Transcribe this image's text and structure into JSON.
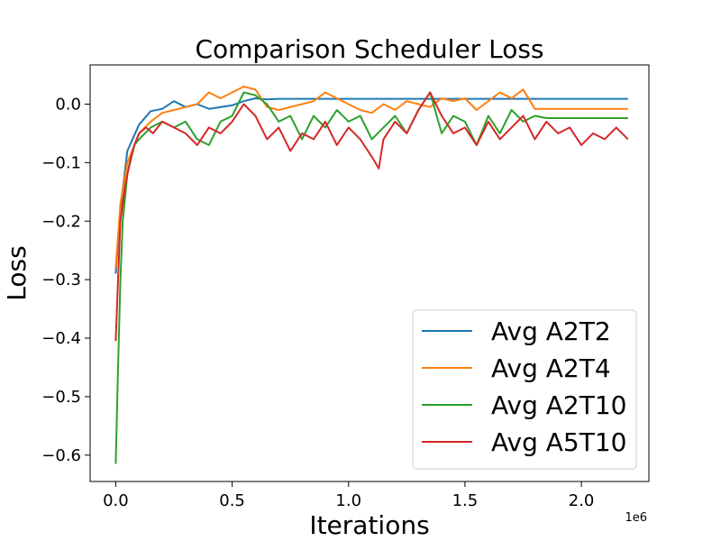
{
  "chart_data": {
    "type": "line",
    "title": "Comparison Scheduler Loss",
    "xlabel": "Iterations",
    "ylabel": "Loss",
    "x_offset_label": "1e6",
    "xlim": [
      -0.11,
      2.29
    ],
    "ylim": [
      -0.645,
      0.067
    ],
    "x_ticks": [
      0.0,
      0.5,
      1.0,
      1.5,
      2.0
    ],
    "x_tick_labels": [
      "0.0",
      "0.5",
      "1.0",
      "1.5",
      "2.0"
    ],
    "y_ticks": [
      0.0,
      -0.1,
      -0.2,
      -0.3,
      -0.4,
      -0.5,
      -0.6
    ],
    "y_tick_labels": [
      "0.0",
      "−0.1",
      "−0.2",
      "−0.3",
      "−0.4",
      "−0.5",
      "−0.6"
    ],
    "grid": false,
    "legend_position": "lower-right",
    "series": [
      {
        "name": "Avg A2T2",
        "color": "#1f77b4",
        "x": [
          0,
          0.02,
          0.05,
          0.1,
          0.15,
          0.2,
          0.25,
          0.3,
          0.35,
          0.4,
          0.45,
          0.5,
          0.55,
          0.6,
          0.65,
          0.7,
          0.8,
          1.0,
          1.5,
          2.0,
          2.2
        ],
        "y": [
          -0.29,
          -0.18,
          -0.08,
          -0.035,
          -0.012,
          -0.008,
          0.005,
          -0.005,
          0.0,
          -0.008,
          -0.005,
          -0.002,
          0.005,
          0.01,
          0.008,
          0.009,
          0.009,
          0.009,
          0.009,
          0.009,
          0.009
        ]
      },
      {
        "name": "Avg A2T4",
        "color": "#ff7f0e",
        "x": [
          0,
          0.02,
          0.05,
          0.1,
          0.15,
          0.2,
          0.25,
          0.3,
          0.35,
          0.4,
          0.45,
          0.5,
          0.55,
          0.6,
          0.65,
          0.7,
          0.75,
          0.8,
          0.85,
          0.9,
          0.95,
          1.0,
          1.05,
          1.1,
          1.15,
          1.2,
          1.25,
          1.3,
          1.35,
          1.4,
          1.45,
          1.5,
          1.55,
          1.6,
          1.65,
          1.7,
          1.75,
          1.8,
          1.85,
          2.0,
          2.2
        ],
        "y": [
          -0.28,
          -0.17,
          -0.1,
          -0.05,
          -0.03,
          -0.015,
          -0.01,
          -0.005,
          0.0,
          0.02,
          0.01,
          0.02,
          0.03,
          0.025,
          -0.005,
          -0.01,
          -0.005,
          0.0,
          0.005,
          0.02,
          0.01,
          0.0,
          -0.01,
          -0.015,
          0.0,
          -0.01,
          0.005,
          0.0,
          -0.005,
          0.01,
          0.005,
          0.01,
          -0.01,
          0.005,
          0.02,
          0.01,
          0.025,
          -0.008,
          -0.008,
          -0.008,
          -0.008
        ]
      },
      {
        "name": "Avg A2T10",
        "color": "#2ca02c",
        "x": [
          0,
          0.01,
          0.02,
          0.03,
          0.05,
          0.08,
          0.1,
          0.15,
          0.2,
          0.25,
          0.3,
          0.35,
          0.4,
          0.45,
          0.5,
          0.55,
          0.6,
          0.65,
          0.7,
          0.75,
          0.8,
          0.85,
          0.9,
          0.95,
          1.0,
          1.05,
          1.1,
          1.15,
          1.2,
          1.25,
          1.3,
          1.35,
          1.4,
          1.45,
          1.5,
          1.55,
          1.6,
          1.65,
          1.7,
          1.75,
          1.8,
          1.85,
          2.0,
          2.2
        ],
        "y": [
          -0.615,
          -0.45,
          -0.3,
          -0.2,
          -0.12,
          -0.07,
          -0.06,
          -0.04,
          -0.03,
          -0.04,
          -0.03,
          -0.06,
          -0.07,
          -0.03,
          -0.02,
          0.02,
          0.015,
          0.0,
          -0.03,
          -0.02,
          -0.06,
          -0.02,
          -0.04,
          -0.01,
          -0.03,
          -0.02,
          -0.06,
          -0.04,
          -0.02,
          -0.05,
          -0.01,
          0.02,
          -0.05,
          -0.02,
          -0.03,
          -0.07,
          -0.02,
          -0.05,
          -0.01,
          -0.03,
          -0.02,
          -0.024,
          -0.024,
          -0.024
        ]
      },
      {
        "name": "Avg A5T10",
        "color": "#d62728",
        "x": [
          0,
          0.01,
          0.02,
          0.04,
          0.06,
          0.08,
          0.1,
          0.13,
          0.16,
          0.2,
          0.25,
          0.3,
          0.35,
          0.4,
          0.45,
          0.5,
          0.55,
          0.6,
          0.65,
          0.7,
          0.75,
          0.8,
          0.85,
          0.9,
          0.95,
          1.0,
          1.05,
          1.1,
          1.13,
          1.15,
          1.2,
          1.25,
          1.3,
          1.35,
          1.4,
          1.45,
          1.5,
          1.55,
          1.6,
          1.65,
          1.7,
          1.75,
          1.8,
          1.85,
          1.9,
          1.95,
          2.0,
          2.05,
          2.1,
          2.15,
          2.2
        ],
        "y": [
          -0.405,
          -0.3,
          -0.2,
          -0.14,
          -0.1,
          -0.07,
          -0.05,
          -0.04,
          -0.05,
          -0.03,
          -0.04,
          -0.05,
          -0.07,
          -0.04,
          -0.05,
          -0.03,
          0.0,
          -0.02,
          -0.06,
          -0.04,
          -0.08,
          -0.05,
          -0.06,
          -0.03,
          -0.07,
          -0.04,
          -0.06,
          -0.09,
          -0.11,
          -0.06,
          -0.03,
          -0.05,
          -0.01,
          0.02,
          -0.02,
          -0.05,
          -0.04,
          -0.07,
          -0.03,
          -0.06,
          -0.04,
          -0.02,
          -0.06,
          -0.03,
          -0.05,
          -0.04,
          -0.07,
          -0.05,
          -0.06,
          -0.04,
          -0.06
        ]
      }
    ]
  }
}
